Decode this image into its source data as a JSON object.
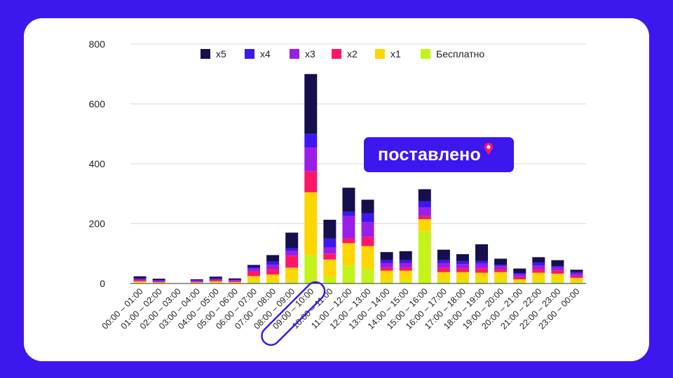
{
  "colors": {
    "background": "#3d17ee",
    "x5": "#160f4d",
    "x4": "#3d17ee",
    "x3": "#9b1ee6",
    "x2": "#ff1668",
    "x1": "#ffd600",
    "free": "#c4f31c",
    "highlight": "#3d17ee"
  },
  "badge": {
    "text": "поставлено",
    "icon": "location-pin-icon"
  },
  "chart_data": {
    "type": "bar",
    "stacked": true,
    "ylim": [
      0,
      800
    ],
    "yticks": [
      0,
      200,
      400,
      600,
      800
    ],
    "grid": true,
    "legend_position": "top",
    "highlighted_category": "09:00 – 10:00",
    "categories": [
      "00:00 – 01:00",
      "01:00 – 02:00",
      "02:00 – 03:00",
      "03:00 – 04:00",
      "04:00 – 05:00",
      "05:00 – 06:00",
      "06:00 – 07:00",
      "07:00 – 08:00",
      "08:00 – 09:00",
      "09:00 – 10:00",
      "10:00 – 11:00",
      "11:00 – 12:00",
      "12:00 – 13:00",
      "13:00 – 14:00",
      "14:00 – 15:00",
      "15:00 – 16:00",
      "16:00 – 17:00",
      "17:00 – 18:00",
      "18:00 – 19:00",
      "19:00 – 20:00",
      "20:00 – 21:00",
      "21:00 – 22:00",
      "22:00 – 23:00",
      "23:00 – 00:00"
    ],
    "series": [
      {
        "name": "Бесплатно",
        "color": "#c4f31c",
        "values": [
          2,
          1,
          0,
          1,
          2,
          1,
          5,
          5,
          8,
          95,
          20,
          60,
          50,
          8,
          8,
          175,
          8,
          8,
          8,
          8,
          4,
          8,
          8,
          4
        ]
      },
      {
        "name": "x1",
        "color": "#ffd600",
        "values": [
          5,
          3,
          0,
          3,
          5,
          4,
          20,
          25,
          45,
          210,
          60,
          75,
          75,
          35,
          35,
          40,
          30,
          30,
          28,
          30,
          10,
          28,
          25,
          15
        ]
      },
      {
        "name": "x2",
        "color": "#ff1668",
        "values": [
          3,
          2,
          0,
          2,
          3,
          3,
          15,
          18,
          40,
          70,
          20,
          15,
          30,
          10,
          10,
          10,
          15,
          12,
          15,
          10,
          8,
          12,
          10,
          7
        ]
      },
      {
        "name": "x3",
        "color": "#9b1ee6",
        "values": [
          4,
          3,
          0,
          3,
          4,
          3,
          10,
          15,
          15,
          80,
          20,
          75,
          50,
          15,
          15,
          30,
          15,
          15,
          15,
          10,
          8,
          12,
          10,
          8
        ]
      },
      {
        "name": "x4",
        "color": "#3d17ee",
        "values": [
          3,
          2,
          0,
          2,
          3,
          2,
          5,
          10,
          10,
          45,
          30,
          15,
          30,
          10,
          10,
          20,
          10,
          10,
          10,
          5,
          5,
          10,
          5,
          4
        ]
      },
      {
        "name": "x5",
        "color": "#160f4d",
        "values": [
          7,
          5,
          0,
          3,
          6,
          4,
          7,
          22,
          52,
          200,
          63,
          80,
          45,
          27,
          30,
          40,
          35,
          23,
          55,
          20,
          15,
          18,
          20,
          8
        ]
      }
    ],
    "legend": [
      "x5",
      "x4",
      "x3",
      "x2",
      "x1",
      "Бесплатно"
    ]
  }
}
